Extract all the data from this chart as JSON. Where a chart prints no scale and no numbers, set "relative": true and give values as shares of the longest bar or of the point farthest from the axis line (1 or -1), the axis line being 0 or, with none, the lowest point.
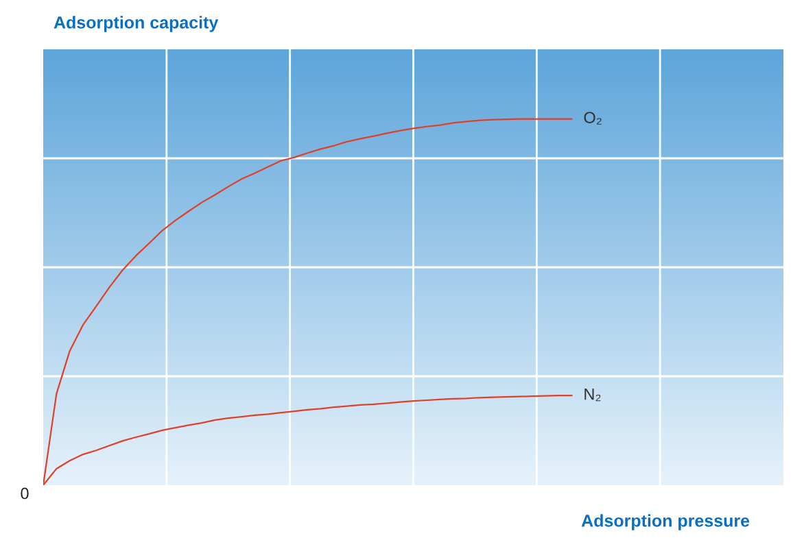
{
  "chart_data": {
    "type": "line",
    "relative": true,
    "grid": true,
    "title": "Adsorption capacity",
    "xlabel": "Adsorption pressure",
    "annotations": [
      "0"
    ],
    "categories": [
      null,
      null,
      null,
      null,
      null,
      null,
      null,
      null,
      null,
      null,
      null,
      null,
      null,
      null,
      null,
      null,
      null,
      null,
      null,
      null,
      null,
      null,
      null,
      null,
      null,
      null,
      null,
      null,
      null,
      null,
      null,
      null,
      null,
      null,
      null,
      null,
      null,
      null,
      null,
      null,
      null,
      null,
      null,
      null,
      null,
      null,
      null,
      null,
      null,
      null,
      null,
      null,
      null,
      null,
      null,
      null,
      null
    ],
    "series": [
      {
        "name": "O₂",
        "color": "#e0402a",
        "values": [
          0,
          0.249,
          0.366,
          0.437,
          0.488,
          0.54,
          0.587,
          0.626,
          0.66,
          0.695,
          0.723,
          0.748,
          0.772,
          0.793,
          0.815,
          0.836,
          0.852,
          0.869,
          0.886,
          0.895,
          0.907,
          0.918,
          0.927,
          0.938,
          0.946,
          0.953,
          0.961,
          0.968,
          0.974,
          0.979,
          0.983,
          0.989,
          0.993,
          0.996,
          0.998,
          0.999,
          1,
          1,
          1,
          1,
          1,
          null,
          null,
          null,
          null,
          null,
          null,
          null,
          null,
          null,
          null,
          null,
          null,
          null,
          null,
          null,
          null
        ]
      },
      {
        "name": "N₂",
        "color": "#e0402a",
        "values": [
          0,
          0.045,
          0.067,
          0.084,
          0.095,
          0.108,
          0.121,
          0.131,
          0.14,
          0.15,
          0.157,
          0.164,
          0.17,
          0.178,
          0.183,
          0.187,
          0.191,
          0.194,
          0.198,
          0.202,
          0.206,
          0.209,
          0.213,
          0.216,
          0.219,
          0.221,
          0.224,
          0.227,
          0.23,
          0.232,
          0.234,
          0.236,
          0.237,
          0.239,
          0.24,
          0.241,
          0.242,
          0.243,
          0.244,
          0.245,
          0.245,
          null,
          null,
          null,
          null,
          null,
          null,
          null,
          null,
          null,
          null,
          null,
          null,
          null,
          null,
          null,
          null
        ]
      }
    ]
  }
}
